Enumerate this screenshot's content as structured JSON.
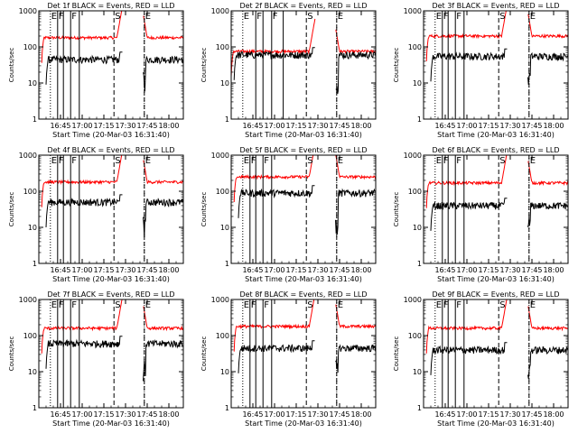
{
  "chart_data": {
    "type": "line",
    "layout": "3x3 grid",
    "x_axis": {
      "label": "Start Time (20-Mar-03 16:31:40)",
      "ticks": [
        "16:45",
        "17:00",
        "17:15",
        "17:30",
        "17:45",
        "18:00"
      ],
      "tick_minutes": [
        -45,
        -30,
        -15,
        0,
        15,
        30
      ],
      "range_minutes": [
        -60,
        40
      ]
    },
    "y_axis": {
      "label": "Counts/sec",
      "scale": "log",
      "ylim": [
        1,
        1000
      ],
      "ticks": [
        "1",
        "10",
        "100",
        "1000"
      ],
      "tick_values": [
        1,
        10,
        100,
        1000
      ]
    },
    "series_colors": {
      "events": "#000000",
      "lld": "#ff0000"
    },
    "marker_colors": {
      "solid": "#000000",
      "dashed": "#000000",
      "dotted": "#000000"
    },
    "marker_letters_default": [
      "E",
      "F",
      "F",
      "S",
      "E"
    ],
    "panels": [
      {
        "title": "Det 1f BLACK = Events, RED = LLD",
        "events_level": 45,
        "lld_level": 180,
        "events_start": -55,
        "lld_start": -58,
        "letters": [
          "E",
          "F",
          "F",
          "S",
          "E"
        ],
        "dotted": [
          -52,
          13
        ],
        "solid": [
          -47,
          -43,
          -38,
          -32
        ],
        "dashed": [
          -8,
          13
        ]
      },
      {
        "title": "Det 2f BLACK = Events, RED = LLD",
        "events_level": 60,
        "lld_level": 75,
        "events_start": -58,
        "lld_start": -60,
        "letters": [
          "E",
          "F",
          "F",
          "S",
          "E"
        ],
        "dotted": [
          -52,
          13
        ],
        "solid": [
          -43,
          -38,
          -32,
          -24
        ],
        "dashed": [
          -8,
          13
        ]
      },
      {
        "title": "Det 3f BLACK = Events, RED = LLD",
        "events_level": 55,
        "lld_level": 200,
        "events_start": -55,
        "lld_start": -58,
        "letters": [
          "E",
          "F",
          "F",
          "S",
          "E"
        ],
        "dotted": [
          -52,
          13
        ],
        "solid": [
          -47,
          -43,
          -38,
          -32
        ],
        "dashed": [
          -8,
          13
        ]
      },
      {
        "title": "Det 4f BLACK = Events, RED = LLD",
        "events_level": 50,
        "lld_level": 180,
        "events_start": -55,
        "lld_start": -58,
        "letters": [
          "E",
          "F",
          "F",
          "S",
          "E"
        ],
        "dotted": [
          -52,
          13
        ],
        "solid": [
          -47,
          -43,
          -38,
          -32
        ],
        "dashed": [
          -8,
          13
        ]
      },
      {
        "title": "Det 5f BLACK = Events, RED = LLD",
        "events_level": 90,
        "lld_level": 250,
        "events_start": -55,
        "lld_start": -58,
        "letters": [
          "E",
          "F",
          "F",
          "S",
          "E"
        ],
        "dotted": [
          -52,
          13
        ],
        "solid": [
          -47,
          -43,
          -38,
          -32
        ],
        "dashed": [
          -8,
          13
        ]
      },
      {
        "title": "Det 6f BLACK = Events, RED = LLD",
        "events_level": 40,
        "lld_level": 170,
        "events_start": -55,
        "lld_start": -58,
        "letters": [
          "E",
          "F",
          "F",
          "S",
          "E"
        ],
        "dotted": [
          -52,
          13
        ],
        "solid": [
          -47,
          -43,
          -38,
          -32
        ],
        "dashed": [
          -8,
          13
        ]
      },
      {
        "title": "Det 7f BLACK = Events, RED = LLD",
        "events_level": 60,
        "lld_level": 160,
        "events_start": -55,
        "lld_start": -58,
        "letters": [
          "E",
          "F",
          "F",
          "S",
          "E"
        ],
        "dotted": [
          -52,
          13
        ],
        "solid": [
          -47,
          -43,
          -38,
          -32
        ],
        "dashed": [
          -8,
          13
        ]
      },
      {
        "title": "Det 8f BLACK = Events, RED = LLD",
        "events_level": 45,
        "lld_level": 180,
        "events_start": -55,
        "lld_start": -58,
        "letters": [
          "E",
          "F",
          "F",
          "S",
          "E"
        ],
        "dotted": [
          -52,
          13
        ],
        "solid": [
          -47,
          -43,
          -38,
          -32
        ],
        "dashed": [
          -8,
          13
        ]
      },
      {
        "title": "Det 9f BLACK = Events, RED = LLD",
        "events_level": 40,
        "lld_level": 160,
        "events_start": -55,
        "lld_start": -58,
        "letters": [
          "E",
          "F",
          "F",
          "S",
          "E"
        ],
        "dotted": [
          -52,
          13
        ],
        "solid": [
          -47,
          -43,
          -38,
          -32
        ],
        "dashed": [
          -8,
          13
        ]
      }
    ]
  }
}
